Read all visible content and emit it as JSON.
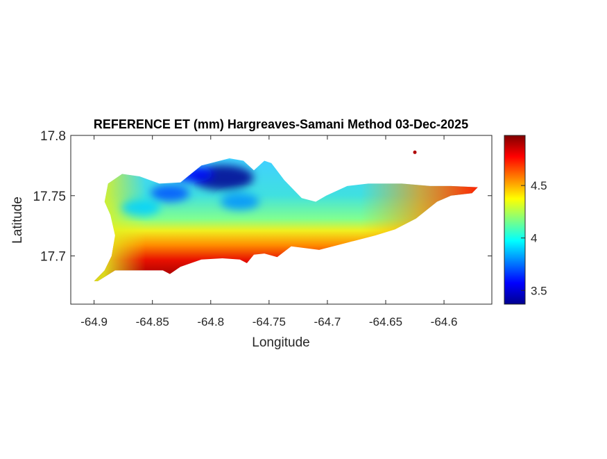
{
  "chart_data": {
    "type": "heatmap",
    "title": "REFERENCE ET (mm) Hargreaves-Samani Method  03-Dec-2025",
    "xlabel": "Longitude",
    "ylabel": "Latitude",
    "xlim": [
      -64.92,
      -64.559
    ],
    "ylim": [
      17.66,
      17.8
    ],
    "xticks": [
      -64.9,
      -64.85,
      -64.8,
      -64.75,
      -64.7,
      -64.65,
      -64.6
    ],
    "xtick_labels": [
      "-64.9",
      "-64.85",
      "-64.8",
      "-64.75",
      "-64.7",
      "-64.65",
      "-64.6"
    ],
    "yticks": [
      17.7,
      17.75,
      17.8
    ],
    "ytick_labels": [
      "17.7",
      "17.75",
      "17.8"
    ],
    "colorbar": {
      "colormap": "jet",
      "clim": [
        3.37,
        4.977
      ],
      "ticks": [
        3.5,
        4,
        4.5
      ],
      "tick_labels": [
        "3.5",
        "4",
        "4.5"
      ]
    },
    "grid": false,
    "region_outline_lonlat": [
      [
        -64.9,
        17.679
      ],
      [
        -64.891,
        17.688
      ],
      [
        -64.885,
        17.7
      ],
      [
        -64.882,
        17.717
      ],
      [
        -64.886,
        17.734
      ],
      [
        -64.891,
        17.745
      ],
      [
        -64.888,
        17.76
      ],
      [
        -64.876,
        17.768
      ],
      [
        -64.861,
        17.766
      ],
      [
        -64.844,
        17.76
      ],
      [
        -64.826,
        17.761
      ],
      [
        -64.808,
        17.775
      ],
      [
        -64.784,
        17.781
      ],
      [
        -64.772,
        17.779
      ],
      [
        -64.763,
        17.771
      ],
      [
        -64.754,
        17.779
      ],
      [
        -64.748,
        17.777
      ],
      [
        -64.737,
        17.763
      ],
      [
        -64.722,
        17.748
      ],
      [
        -64.71,
        17.745
      ],
      [
        -64.701,
        17.75
      ],
      [
        -64.683,
        17.758
      ],
      [
        -64.665,
        17.76
      ],
      [
        -64.636,
        17.76
      ],
      [
        -64.612,
        17.758
      ],
      [
        -64.594,
        17.758
      ],
      [
        -64.571,
        17.757
      ],
      [
        -64.576,
        17.752
      ],
      [
        -64.594,
        17.75
      ],
      [
        -64.606,
        17.745
      ],
      [
        -64.624,
        17.731
      ],
      [
        -64.642,
        17.722
      ],
      [
        -64.659,
        17.717
      ],
      [
        -64.683,
        17.711
      ],
      [
        -64.707,
        17.705
      ],
      [
        -64.731,
        17.708
      ],
      [
        -64.743,
        17.699
      ],
      [
        -64.754,
        17.702
      ],
      [
        -64.763,
        17.701
      ],
      [
        -64.769,
        17.694
      ],
      [
        -64.775,
        17.697
      ],
      [
        -64.79,
        17.698
      ],
      [
        -64.808,
        17.697
      ],
      [
        -64.826,
        17.691
      ],
      [
        -64.835,
        17.685
      ],
      [
        -64.841,
        17.688
      ],
      [
        -64.861,
        17.688
      ],
      [
        -64.882,
        17.688
      ],
      [
        -64.897,
        17.679
      ]
    ],
    "value_trend": "low (~3.4-3.8) in north-central interior near -64.79,17.765; high (~4.8-4.97) along south coast; ~4.6-4.8 at east tip",
    "low_spots": [
      [
        -64.79,
        17.765,
        3.4
      ],
      [
        -64.815,
        17.768,
        3.6
      ],
      [
        -64.835,
        17.752,
        3.7
      ],
      [
        -64.775,
        17.745,
        3.8
      ],
      [
        -64.86,
        17.74,
        3.9
      ]
    ],
    "isolated_point": [
      -64.625,
      17.786,
      4.9
    ]
  }
}
